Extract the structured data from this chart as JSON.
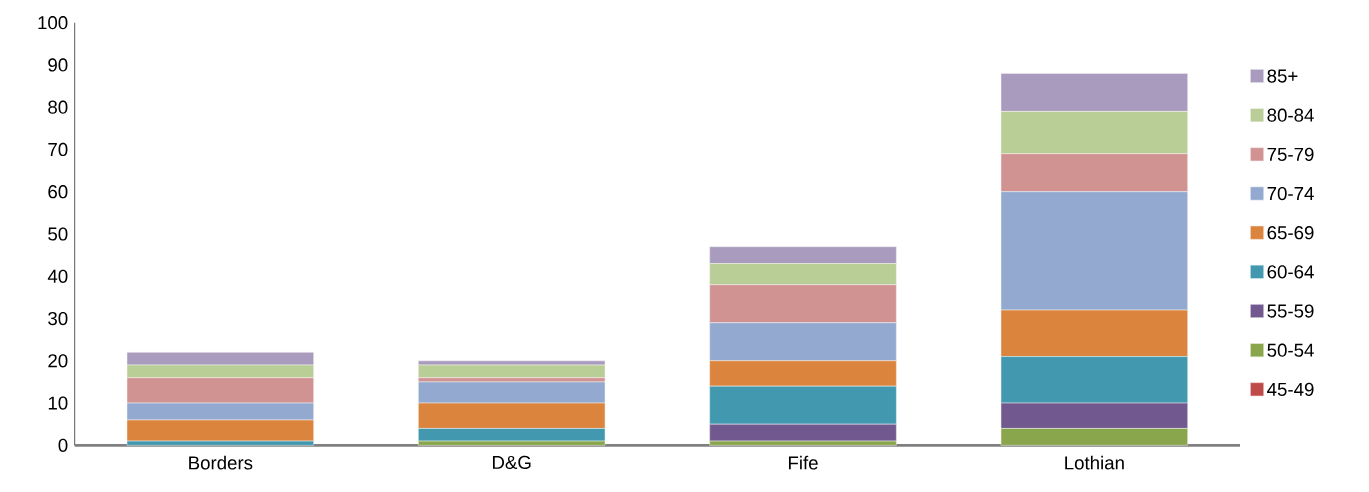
{
  "chart_data": {
    "type": "bar",
    "stacked": true,
    "categories": [
      "Borders",
      "D&G",
      "Fife",
      "Lothian"
    ],
    "series": [
      {
        "name": "45-49",
        "color": "#be4b48",
        "values": [
          0,
          0,
          0,
          0
        ]
      },
      {
        "name": "50-54",
        "color": "#8aa64d",
        "values": [
          0,
          1,
          1,
          4
        ]
      },
      {
        "name": "55-59",
        "color": "#71588f",
        "values": [
          0,
          0,
          4,
          6
        ]
      },
      {
        "name": "60-64",
        "color": "#4198af",
        "values": [
          1,
          3,
          9,
          11
        ]
      },
      {
        "name": "65-69",
        "color": "#db843d",
        "values": [
          5,
          6,
          6,
          11
        ]
      },
      {
        "name": "70-74",
        "color": "#93a9cf",
        "values": [
          4,
          5,
          9,
          28
        ]
      },
      {
        "name": "75-79",
        "color": "#d19392",
        "values": [
          6,
          1,
          9,
          9
        ]
      },
      {
        "name": "80-84",
        "color": "#b9cd96",
        "values": [
          3,
          3,
          5,
          10
        ]
      },
      {
        "name": "85+",
        "color": "#a99bbd",
        "values": [
          3,
          1,
          4,
          9
        ]
      }
    ],
    "ylim": [
      0,
      100
    ],
    "yticks": [
      0,
      10,
      20,
      30,
      40,
      50,
      60,
      70,
      80,
      90,
      100
    ],
    "legend": "right",
    "grid": false
  }
}
